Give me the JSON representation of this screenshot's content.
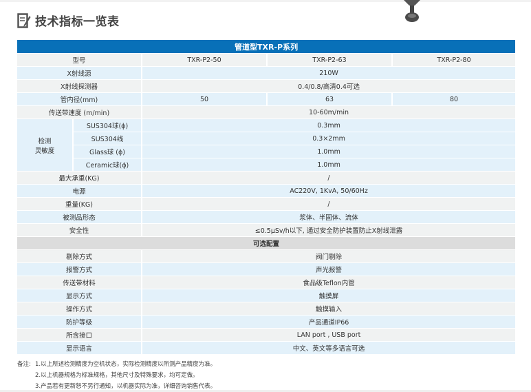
{
  "heading": "技术指标一览表",
  "table": {
    "series_title": "管道型TXR-P系列",
    "model_label": "型号",
    "models": [
      "TXR-P2-50",
      "TXR-P2-63",
      "TXR-P2-80"
    ],
    "rows": [
      {
        "label": "X射线源",
        "value": "210W"
      },
      {
        "label": "X射线探测器",
        "value": "0.4/0.8/高清0.4可选"
      },
      {
        "label": "管内径(mm)",
        "values": [
          "50",
          "63",
          "80"
        ]
      },
      {
        "label": "传送带速度 (m/min)",
        "value": "10-60m/min"
      }
    ],
    "sensitivity": {
      "label": "检测\n灵敏度",
      "label_lines": [
        "检测",
        "灵敏度"
      ],
      "items": [
        {
          "label": "SUS304球(ϕ)",
          "value": "0.3mm"
        },
        {
          "label": "SUS304线",
          "value": "0.3×2mm"
        },
        {
          "label": "Glass球 (ϕ)",
          "value": "1.0mm"
        },
        {
          "label": "Ceramic球(ϕ)",
          "value": "1.0mm"
        }
      ]
    },
    "rows2": [
      {
        "label": "最大承重(KG)",
        "value": "/"
      },
      {
        "label": "电源",
        "value": "AC220V, 1KvA, 50/60Hz"
      },
      {
        "label": "重量(KG)",
        "value": "/"
      },
      {
        "label": "被测品形态",
        "value": "浆体、半固体、流体"
      },
      {
        "label": "安全性",
        "value": "≤0.5μSv/h以下, 通过安全防护装置防止X射线泄露"
      }
    ],
    "optional_title": "可选配置",
    "optional": [
      {
        "label": "剔除方式",
        "value": "阀门剔除"
      },
      {
        "label": "报警方式",
        "value": "声光报警"
      },
      {
        "label": "传送带材料",
        "value": "食品级Teflon内管"
      },
      {
        "label": "显示方式",
        "value": "触摸屏"
      },
      {
        "label": "操作方式",
        "value": "触摸输入"
      },
      {
        "label": "防护等级",
        "value": "产品通道IP66"
      },
      {
        "label": "所含接口",
        "value": "LAN port , USB port"
      },
      {
        "label": "显示语言",
        "value": "中文、英文等多语言可选"
      }
    ]
  },
  "notes": {
    "label": "备注:",
    "items": [
      "1.以上所述检测精度为空机状态，实际检测精度以所测产品精度为准。",
      "2.以上机器规格为标准规格，其他尺寸及特殊要求，均可定做。",
      "3.产品若有更新恕不另行通知，以机器实际为准，详细咨询销售代表。"
    ]
  },
  "colors": {
    "header": "#0870b8",
    "row_gray": "#f0f2f2",
    "row_blue": "#e3f1fa",
    "section": "#dcdcdc"
  }
}
